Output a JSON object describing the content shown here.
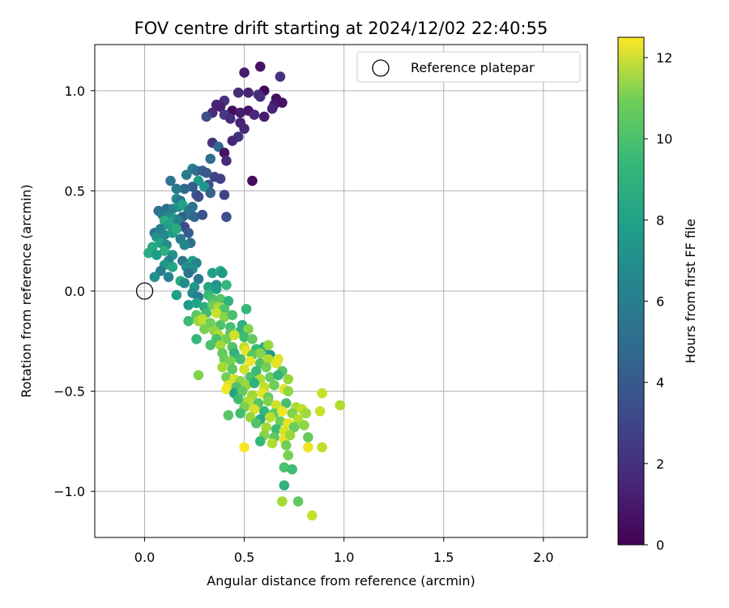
{
  "chart_data": {
    "type": "scatter",
    "title": "FOV centre drift starting at 2024/12/02 22:40:55",
    "xlabel": "Angular distance from reference (arcmin)",
    "ylabel": "Rotation from reference (arcmin)",
    "xlim": [
      -0.25,
      2.22
    ],
    "ylim": [
      -1.23,
      1.23
    ],
    "xticks": [
      "0.0",
      "0.5",
      "1.0",
      "1.5",
      "2.0"
    ],
    "yticks": [
      "1.0",
      "0.5",
      "0.0",
      "−0.5",
      "−1.0"
    ],
    "grid": true,
    "legend": {
      "label": "Reference platepar",
      "placement": "top-right"
    },
    "reference_point": {
      "x": 0.0,
      "y": 0.0
    },
    "colorbar": {
      "label": "Hours from first FF file",
      "min": 0,
      "max": 12.5,
      "ticks": [
        "0",
        "2",
        "4",
        "6",
        "8",
        "10",
        "12"
      ],
      "colormap": "viridis"
    },
    "points": [
      {
        "x": 0.5,
        "y": 1.09,
        "h": 1.0
      },
      {
        "x": 0.58,
        "y": 1.12,
        "h": 0.6
      },
      {
        "x": 0.68,
        "y": 1.07,
        "h": 1.8
      },
      {
        "x": 0.6,
        "y": 1.0,
        "h": 0.2
      },
      {
        "x": 0.47,
        "y": 0.99,
        "h": 1.5
      },
      {
        "x": 0.52,
        "y": 0.99,
        "h": 1.3
      },
      {
        "x": 0.57,
        "y": 0.98,
        "h": 1.9
      },
      {
        "x": 0.58,
        "y": 0.97,
        "h": 1.6
      },
      {
        "x": 0.66,
        "y": 0.96,
        "h": 0.5
      },
      {
        "x": 0.65,
        "y": 0.93,
        "h": 0.9
      },
      {
        "x": 0.69,
        "y": 0.94,
        "h": 0.7
      },
      {
        "x": 0.4,
        "y": 0.95,
        "h": 1.7
      },
      {
        "x": 0.36,
        "y": 0.93,
        "h": 1.2
      },
      {
        "x": 0.38,
        "y": 0.92,
        "h": 1.1
      },
      {
        "x": 0.44,
        "y": 0.9,
        "h": 0.4
      },
      {
        "x": 0.48,
        "y": 0.89,
        "h": 1.0
      },
      {
        "x": 0.52,
        "y": 0.9,
        "h": 0.8
      },
      {
        "x": 0.55,
        "y": 0.88,
        "h": 1.4
      },
      {
        "x": 0.34,
        "y": 0.89,
        "h": 1.5
      },
      {
        "x": 0.4,
        "y": 0.88,
        "h": 2.2
      },
      {
        "x": 0.31,
        "y": 0.87,
        "h": 3.0
      },
      {
        "x": 0.43,
        "y": 0.86,
        "h": 1.6
      },
      {
        "x": 0.48,
        "y": 0.84,
        "h": 1.2
      },
      {
        "x": 0.64,
        "y": 0.91,
        "h": 1.3
      },
      {
        "x": 0.6,
        "y": 0.87,
        "h": 1.0
      },
      {
        "x": 0.5,
        "y": 0.81,
        "h": 1.4
      },
      {
        "x": 0.47,
        "y": 0.77,
        "h": 1.8
      },
      {
        "x": 0.44,
        "y": 0.75,
        "h": 1.3
      },
      {
        "x": 0.34,
        "y": 0.74,
        "h": 1.8
      },
      {
        "x": 0.37,
        "y": 0.72,
        "h": 4.2
      },
      {
        "x": 0.4,
        "y": 0.69,
        "h": 0.6
      },
      {
        "x": 0.33,
        "y": 0.66,
        "h": 4.6
      },
      {
        "x": 0.41,
        "y": 0.65,
        "h": 1.5
      },
      {
        "x": 0.54,
        "y": 0.55,
        "h": 0.4
      },
      {
        "x": 0.13,
        "y": 0.55,
        "h": 4.8
      },
      {
        "x": 0.21,
        "y": 0.58,
        "h": 5.2
      },
      {
        "x": 0.24,
        "y": 0.61,
        "h": 5.4
      },
      {
        "x": 0.26,
        "y": 0.6,
        "h": 4.5
      },
      {
        "x": 0.29,
        "y": 0.6,
        "h": 3.8
      },
      {
        "x": 0.31,
        "y": 0.59,
        "h": 3.5
      },
      {
        "x": 0.35,
        "y": 0.57,
        "h": 2.8
      },
      {
        "x": 0.38,
        "y": 0.56,
        "h": 2.5
      },
      {
        "x": 0.27,
        "y": 0.55,
        "h": 6.8
      },
      {
        "x": 0.32,
        "y": 0.53,
        "h": 3.2
      },
      {
        "x": 0.24,
        "y": 0.52,
        "h": 3.6
      },
      {
        "x": 0.2,
        "y": 0.51,
        "h": 4.2
      },
      {
        "x": 0.16,
        "y": 0.51,
        "h": 5.1
      },
      {
        "x": 0.3,
        "y": 0.52,
        "h": 6.5
      },
      {
        "x": 0.26,
        "y": 0.48,
        "h": 3.4
      },
      {
        "x": 0.27,
        "y": 0.47,
        "h": 2.9
      },
      {
        "x": 0.33,
        "y": 0.49,
        "h": 4.0
      },
      {
        "x": 0.4,
        "y": 0.48,
        "h": 2.6
      },
      {
        "x": 0.16,
        "y": 0.46,
        "h": 5.8
      },
      {
        "x": 0.18,
        "y": 0.45,
        "h": 5.0
      },
      {
        "x": 0.11,
        "y": 0.41,
        "h": 4.4
      },
      {
        "x": 0.14,
        "y": 0.41,
        "h": 5.6
      },
      {
        "x": 0.17,
        "y": 0.42,
        "h": 6.2
      },
      {
        "x": 0.19,
        "y": 0.43,
        "h": 7.2
      },
      {
        "x": 0.22,
        "y": 0.4,
        "h": 5.3
      },
      {
        "x": 0.24,
        "y": 0.42,
        "h": 4.8
      },
      {
        "x": 0.07,
        "y": 0.4,
        "h": 4.6
      },
      {
        "x": 0.09,
        "y": 0.38,
        "h": 5.2
      },
      {
        "x": 0.12,
        "y": 0.37,
        "h": 6.0
      },
      {
        "x": 0.1,
        "y": 0.35,
        "h": 7.8
      },
      {
        "x": 0.15,
        "y": 0.36,
        "h": 6.6
      },
      {
        "x": 0.19,
        "y": 0.37,
        "h": 3.8
      },
      {
        "x": 0.23,
        "y": 0.38,
        "h": 4.9
      },
      {
        "x": 0.25,
        "y": 0.37,
        "h": 4.1
      },
      {
        "x": 0.29,
        "y": 0.38,
        "h": 3.2
      },
      {
        "x": 0.41,
        "y": 0.37,
        "h": 3.0
      },
      {
        "x": 0.05,
        "y": 0.29,
        "h": 4.8
      },
      {
        "x": 0.08,
        "y": 0.31,
        "h": 5.4
      },
      {
        "x": 0.12,
        "y": 0.33,
        "h": 7.0
      },
      {
        "x": 0.14,
        "y": 0.34,
        "h": 7.4
      },
      {
        "x": 0.17,
        "y": 0.35,
        "h": 5.6
      },
      {
        "x": 0.2,
        "y": 0.32,
        "h": 2.8
      },
      {
        "x": 0.22,
        "y": 0.29,
        "h": 3.6
      },
      {
        "x": 0.06,
        "y": 0.27,
        "h": 6.4
      },
      {
        "x": 0.1,
        "y": 0.28,
        "h": 5.9
      },
      {
        "x": 0.14,
        "y": 0.29,
        "h": 6.8
      },
      {
        "x": 0.16,
        "y": 0.31,
        "h": 7.6
      },
      {
        "x": 0.23,
        "y": 0.24,
        "h": 4.6
      },
      {
        "x": 0.08,
        "y": 0.24,
        "h": 7.2
      },
      {
        "x": 0.11,
        "y": 0.23,
        "h": 6.1
      },
      {
        "x": 0.04,
        "y": 0.22,
        "h": 7.5
      },
      {
        "x": 0.1,
        "y": 0.2,
        "h": 7.9
      },
      {
        "x": 0.18,
        "y": 0.26,
        "h": 5.2
      },
      {
        "x": 0.2,
        "y": 0.23,
        "h": 5.8
      },
      {
        "x": 0.02,
        "y": 0.19,
        "h": 7.7
      },
      {
        "x": 0.06,
        "y": 0.18,
        "h": 6.9
      },
      {
        "x": 0.14,
        "y": 0.18,
        "h": 6.3
      },
      {
        "x": 0.12,
        "y": 0.15,
        "h": 5.5
      },
      {
        "x": 0.19,
        "y": 0.15,
        "h": 4.9
      },
      {
        "x": 0.24,
        "y": 0.15,
        "h": 7.1
      },
      {
        "x": 0.26,
        "y": 0.14,
        "h": 5.7
      },
      {
        "x": 0.1,
        "y": 0.13,
        "h": 6.7
      },
      {
        "x": 0.14,
        "y": 0.12,
        "h": 7.3
      },
      {
        "x": 0.21,
        "y": 0.12,
        "h": 6.1
      },
      {
        "x": 0.24,
        "y": 0.11,
        "h": 6.4
      },
      {
        "x": 0.08,
        "y": 0.1,
        "h": 5.3
      },
      {
        "x": 0.22,
        "y": 0.09,
        "h": 4.7
      },
      {
        "x": 0.34,
        "y": 0.09,
        "h": 7.0
      },
      {
        "x": 0.38,
        "y": 0.1,
        "h": 7.8
      },
      {
        "x": 0.39,
        "y": 0.09,
        "h": 6.8
      },
      {
        "x": 0.05,
        "y": 0.07,
        "h": 6.2
      },
      {
        "x": 0.12,
        "y": 0.07,
        "h": 5.6
      },
      {
        "x": 0.27,
        "y": 0.06,
        "h": 5.1
      },
      {
        "x": 0.18,
        "y": 0.05,
        "h": 7.6
      },
      {
        "x": 0.2,
        "y": 0.04,
        "h": 6.0
      },
      {
        "x": 0.25,
        "y": 0.02,
        "h": 6.6
      },
      {
        "x": 0.32,
        "y": 0.02,
        "h": 7.4
      },
      {
        "x": 0.36,
        "y": 0.03,
        "h": 6.3
      },
      {
        "x": 0.41,
        "y": 0.03,
        "h": 8.2
      },
      {
        "x": 0.36,
        "y": 0.01,
        "h": 6.9
      },
      {
        "x": 0.24,
        "y": -0.01,
        "h": 5.9
      },
      {
        "x": 0.16,
        "y": -0.02,
        "h": 7.0
      },
      {
        "x": 0.27,
        "y": -0.03,
        "h": 5.3
      },
      {
        "x": 0.32,
        "y": -0.02,
        "h": 8.4
      },
      {
        "x": 0.34,
        "y": -0.04,
        "h": 8.8
      },
      {
        "x": 0.38,
        "y": -0.04,
        "h": 9.2
      },
      {
        "x": 0.42,
        "y": -0.05,
        "h": 8.0
      },
      {
        "x": 0.22,
        "y": -0.07,
        "h": 6.8
      },
      {
        "x": 0.26,
        "y": -0.06,
        "h": 7.2
      },
      {
        "x": 0.3,
        "y": -0.08,
        "h": 7.7
      },
      {
        "x": 0.34,
        "y": -0.07,
        "h": 9.6
      },
      {
        "x": 0.37,
        "y": -0.08,
        "h": 10.8
      },
      {
        "x": 0.4,
        "y": -0.09,
        "h": 9.0
      },
      {
        "x": 0.51,
        "y": -0.09,
        "h": 8.2
      },
      {
        "x": 0.26,
        "y": -0.12,
        "h": 9.3
      },
      {
        "x": 0.31,
        "y": -0.11,
        "h": 8.6
      },
      {
        "x": 0.36,
        "y": -0.11,
        "h": 11.5
      },
      {
        "x": 0.4,
        "y": -0.13,
        "h": 10.2
      },
      {
        "x": 0.44,
        "y": -0.12,
        "h": 8.9
      },
      {
        "x": 0.22,
        "y": -0.15,
        "h": 8.5
      },
      {
        "x": 0.27,
        "y": -0.15,
        "h": 10.6
      },
      {
        "x": 0.29,
        "y": -0.14,
        "h": 11.2
      },
      {
        "x": 0.33,
        "y": -0.16,
        "h": 9.7
      },
      {
        "x": 0.38,
        "y": -0.17,
        "h": 9.0
      },
      {
        "x": 0.43,
        "y": -0.18,
        "h": 8.7
      },
      {
        "x": 0.49,
        "y": -0.17,
        "h": 7.9
      },
      {
        "x": 0.3,
        "y": -0.19,
        "h": 9.9
      },
      {
        "x": 0.35,
        "y": -0.2,
        "h": 10.4
      },
      {
        "x": 0.37,
        "y": -0.22,
        "h": 11.0
      },
      {
        "x": 0.43,
        "y": -0.21,
        "h": 9.3
      },
      {
        "x": 0.48,
        "y": -0.2,
        "h": 8.1
      },
      {
        "x": 0.52,
        "y": -0.19,
        "h": 10.1
      },
      {
        "x": 0.36,
        "y": -0.24,
        "h": 8.8
      },
      {
        "x": 0.41,
        "y": -0.24,
        "h": 9.8
      },
      {
        "x": 0.45,
        "y": -0.22,
        "h": 11.6
      },
      {
        "x": 0.5,
        "y": -0.23,
        "h": 8.6
      },
      {
        "x": 0.54,
        "y": -0.24,
        "h": 9.4
      },
      {
        "x": 0.26,
        "y": -0.24,
        "h": 8.3
      },
      {
        "x": 0.33,
        "y": -0.27,
        "h": 8.9
      },
      {
        "x": 0.38,
        "y": -0.27,
        "h": 10.7
      },
      {
        "x": 0.44,
        "y": -0.28,
        "h": 9.1
      },
      {
        "x": 0.5,
        "y": -0.28,
        "h": 11.3
      },
      {
        "x": 0.56,
        "y": -0.29,
        "h": 8.4
      },
      {
        "x": 0.6,
        "y": -0.28,
        "h": 7.6
      },
      {
        "x": 0.62,
        "y": -0.27,
        "h": 10.5
      },
      {
        "x": 0.39,
        "y": -0.31,
        "h": 9.5
      },
      {
        "x": 0.45,
        "y": -0.31,
        "h": 8.1
      },
      {
        "x": 0.51,
        "y": -0.3,
        "h": 12.1
      },
      {
        "x": 0.54,
        "y": -0.32,
        "h": 9.2
      },
      {
        "x": 0.58,
        "y": -0.31,
        "h": 10.2
      },
      {
        "x": 0.63,
        "y": -0.32,
        "h": 6.8
      },
      {
        "x": 0.4,
        "y": -0.34,
        "h": 9.6
      },
      {
        "x": 0.43,
        "y": -0.35,
        "h": 10.0
      },
      {
        "x": 0.48,
        "y": -0.34,
        "h": 8.7
      },
      {
        "x": 0.53,
        "y": -0.35,
        "h": 12.2
      },
      {
        "x": 0.58,
        "y": -0.36,
        "h": 9.0
      },
      {
        "x": 0.62,
        "y": -0.34,
        "h": 11.0
      },
      {
        "x": 0.67,
        "y": -0.34,
        "h": 11.8
      },
      {
        "x": 0.39,
        "y": -0.38,
        "h": 10.8
      },
      {
        "x": 0.44,
        "y": -0.39,
        "h": 9.3
      },
      {
        "x": 0.5,
        "y": -0.39,
        "h": 11.6
      },
      {
        "x": 0.56,
        "y": -0.4,
        "h": 8.5
      },
      {
        "x": 0.61,
        "y": -0.38,
        "h": 9.8
      },
      {
        "x": 0.66,
        "y": -0.36,
        "h": 12.0
      },
      {
        "x": 0.69,
        "y": -0.4,
        "h": 9.2
      },
      {
        "x": 0.41,
        "y": -0.43,
        "h": 9.8
      },
      {
        "x": 0.45,
        "y": -0.44,
        "h": 11.7
      },
      {
        "x": 0.48,
        "y": -0.45,
        "h": 10.3
      },
      {
        "x": 0.53,
        "y": -0.43,
        "h": 8.9
      },
      {
        "x": 0.58,
        "y": -0.44,
        "h": 10.9
      },
      {
        "x": 0.63,
        "y": -0.43,
        "h": 9.6
      },
      {
        "x": 0.67,
        "y": -0.42,
        "h": 8.2
      },
      {
        "x": 0.72,
        "y": -0.44,
        "h": 10.5
      },
      {
        "x": 0.27,
        "y": -0.42,
        "h": 10.1
      },
      {
        "x": 0.42,
        "y": -0.47,
        "h": 11.9
      },
      {
        "x": 0.46,
        "y": -0.48,
        "h": 9.0
      },
      {
        "x": 0.51,
        "y": -0.47,
        "h": 10.6
      },
      {
        "x": 0.55,
        "y": -0.46,
        "h": 8.0
      },
      {
        "x": 0.6,
        "y": -0.48,
        "h": 11.3
      },
      {
        "x": 0.65,
        "y": -0.47,
        "h": 9.7
      },
      {
        "x": 0.7,
        "y": -0.49,
        "h": 12.0
      },
      {
        "x": 0.41,
        "y": -0.49,
        "h": 12.3
      },
      {
        "x": 0.45,
        "y": -0.51,
        "h": 7.2
      },
      {
        "x": 0.49,
        "y": -0.5,
        "h": 9.4
      },
      {
        "x": 0.54,
        "y": -0.52,
        "h": 10.7
      },
      {
        "x": 0.59,
        "y": -0.51,
        "h": 12.1
      },
      {
        "x": 0.62,
        "y": -0.53,
        "h": 9.5
      },
      {
        "x": 0.72,
        "y": -0.5,
        "h": 10.4
      },
      {
        "x": 0.89,
        "y": -0.51,
        "h": 11.4
      },
      {
        "x": 0.47,
        "y": -0.54,
        "h": 8.6
      },
      {
        "x": 0.52,
        "y": -0.55,
        "h": 11.1
      },
      {
        "x": 0.57,
        "y": -0.56,
        "h": 9.1
      },
      {
        "x": 0.62,
        "y": -0.55,
        "h": 10.0
      },
      {
        "x": 0.66,
        "y": -0.57,
        "h": 11.6
      },
      {
        "x": 0.71,
        "y": -0.56,
        "h": 8.8
      },
      {
        "x": 0.76,
        "y": -0.58,
        "h": 10.9
      },
      {
        "x": 0.98,
        "y": -0.57,
        "h": 11.0
      },
      {
        "x": 0.5,
        "y": -0.58,
        "h": 9.9
      },
      {
        "x": 0.55,
        "y": -0.59,
        "h": 11.8
      },
      {
        "x": 0.6,
        "y": -0.6,
        "h": 8.3
      },
      {
        "x": 0.65,
        "y": -0.61,
        "h": 9.4
      },
      {
        "x": 0.69,
        "y": -0.6,
        "h": 12.2
      },
      {
        "x": 0.74,
        "y": -0.61,
        "h": 10.1
      },
      {
        "x": 0.79,
        "y": -0.59,
        "h": 11.3
      },
      {
        "x": 0.81,
        "y": -0.61,
        "h": 10.6
      },
      {
        "x": 0.88,
        "y": -0.6,
        "h": 11.5
      },
      {
        "x": 0.42,
        "y": -0.62,
        "h": 9.2
      },
      {
        "x": 0.48,
        "y": -0.61,
        "h": 8.7
      },
      {
        "x": 0.53,
        "y": -0.63,
        "h": 10.5
      },
      {
        "x": 0.58,
        "y": -0.64,
        "h": 7.5
      },
      {
        "x": 0.63,
        "y": -0.63,
        "h": 11.2
      },
      {
        "x": 0.68,
        "y": -0.65,
        "h": 9.7
      },
      {
        "x": 0.72,
        "y": -0.66,
        "h": 12.0
      },
      {
        "x": 0.77,
        "y": -0.64,
        "h": 11.1
      },
      {
        "x": 0.8,
        "y": -0.67,
        "h": 10.3
      },
      {
        "x": 0.56,
        "y": -0.66,
        "h": 9.0
      },
      {
        "x": 0.61,
        "y": -0.68,
        "h": 10.8
      },
      {
        "x": 0.66,
        "y": -0.69,
        "h": 8.5
      },
      {
        "x": 0.7,
        "y": -0.7,
        "h": 11.7
      },
      {
        "x": 0.75,
        "y": -0.68,
        "h": 9.6
      },
      {
        "x": 0.6,
        "y": -0.72,
        "h": 10.2
      },
      {
        "x": 0.65,
        "y": -0.73,
        "h": 9.3
      },
      {
        "x": 0.7,
        "y": -0.74,
        "h": 12.1
      },
      {
        "x": 0.73,
        "y": -0.72,
        "h": 10.6
      },
      {
        "x": 0.58,
        "y": -0.75,
        "h": 8.4
      },
      {
        "x": 0.64,
        "y": -0.76,
        "h": 11.0
      },
      {
        "x": 0.71,
        "y": -0.77,
        "h": 9.8
      },
      {
        "x": 0.82,
        "y": -0.73,
        "h": 9.5
      },
      {
        "x": 0.82,
        "y": -0.78,
        "h": 12.2
      },
      {
        "x": 0.89,
        "y": -0.78,
        "h": 11.3
      },
      {
        "x": 0.5,
        "y": -0.78,
        "h": 12.4
      },
      {
        "x": 0.72,
        "y": -0.82,
        "h": 9.9
      },
      {
        "x": 0.7,
        "y": -0.88,
        "h": 8.9
      },
      {
        "x": 0.74,
        "y": -0.89,
        "h": 8.6
      },
      {
        "x": 0.7,
        "y": -0.97,
        "h": 8.0
      },
      {
        "x": 0.69,
        "y": -1.05,
        "h": 10.8
      },
      {
        "x": 0.77,
        "y": -1.05,
        "h": 9.4
      },
      {
        "x": 0.84,
        "y": -1.12,
        "h": 11.4
      }
    ]
  }
}
